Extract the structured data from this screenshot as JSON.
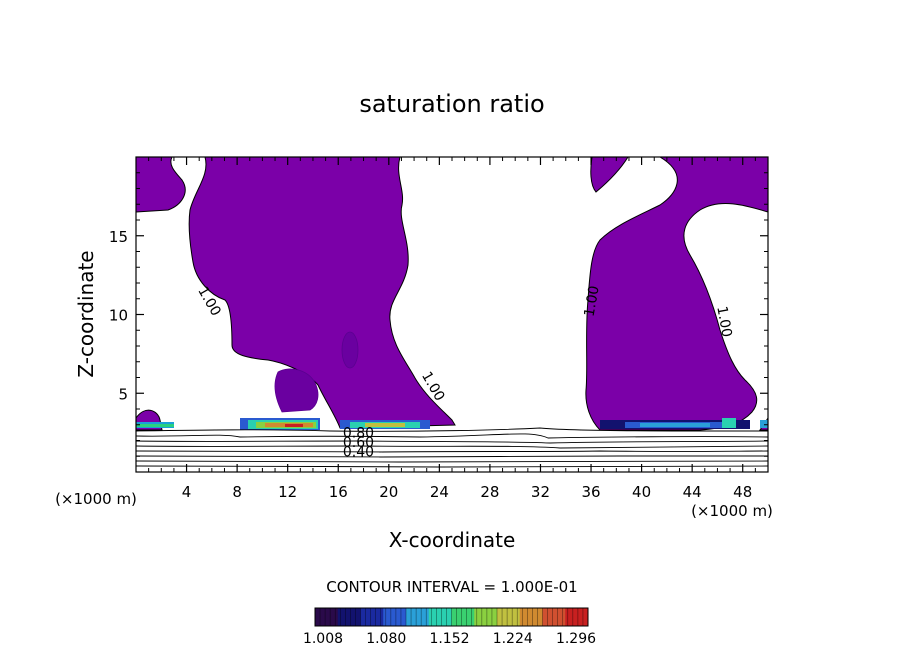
{
  "chart_data": {
    "type": "contour",
    "title": "saturation ratio",
    "xlabel": "X-coordinate",
    "ylabel": "Z-coordinate",
    "x_unit": "(×1000 m)",
    "x_unit_right": "(×1000 m)",
    "xlim": [
      0,
      50
    ],
    "ylim": [
      0,
      20
    ],
    "x_ticks": [
      4,
      8,
      12,
      16,
      20,
      24,
      28,
      32,
      36,
      40,
      44,
      48
    ],
    "y_ticks": [
      5,
      10,
      15
    ],
    "fill_color": "#7b00a8",
    "contour_labels": [
      {
        "text": "1.00",
        "x": 5.5,
        "z": 10.7,
        "angle": 60
      },
      {
        "text": "1.00",
        "x": 23.2,
        "z": 5.3,
        "angle": 60
      },
      {
        "text": "1.00",
        "x": 36.4,
        "z": 10.8,
        "angle": -80
      },
      {
        "text": "1.00",
        "x": 46.2,
        "z": 9.5,
        "angle": 80
      },
      {
        "text": "0.80",
        "x": 17.6,
        "z": 2.2,
        "angle": 0
      },
      {
        "text": "0.60",
        "x": 17.6,
        "z": 1.6,
        "angle": 0
      },
      {
        "text": "0.40",
        "x": 17.6,
        "z": 1.0,
        "angle": 0
      }
    ],
    "contour_interval_text": "CONTOUR INTERVAL = 1.000E-01",
    "colorbar": {
      "ticks": [
        "1.008",
        "1.080",
        "1.152",
        "1.224",
        "1.296"
      ],
      "colors": [
        "#2a0a4a",
        "#12126e",
        "#1a2aa0",
        "#2a5ad0",
        "#2aa0d8",
        "#2ad0b0",
        "#3ad070",
        "#8ad040",
        "#c0c040",
        "#d08a30",
        "#d05030",
        "#c82020"
      ]
    }
  }
}
